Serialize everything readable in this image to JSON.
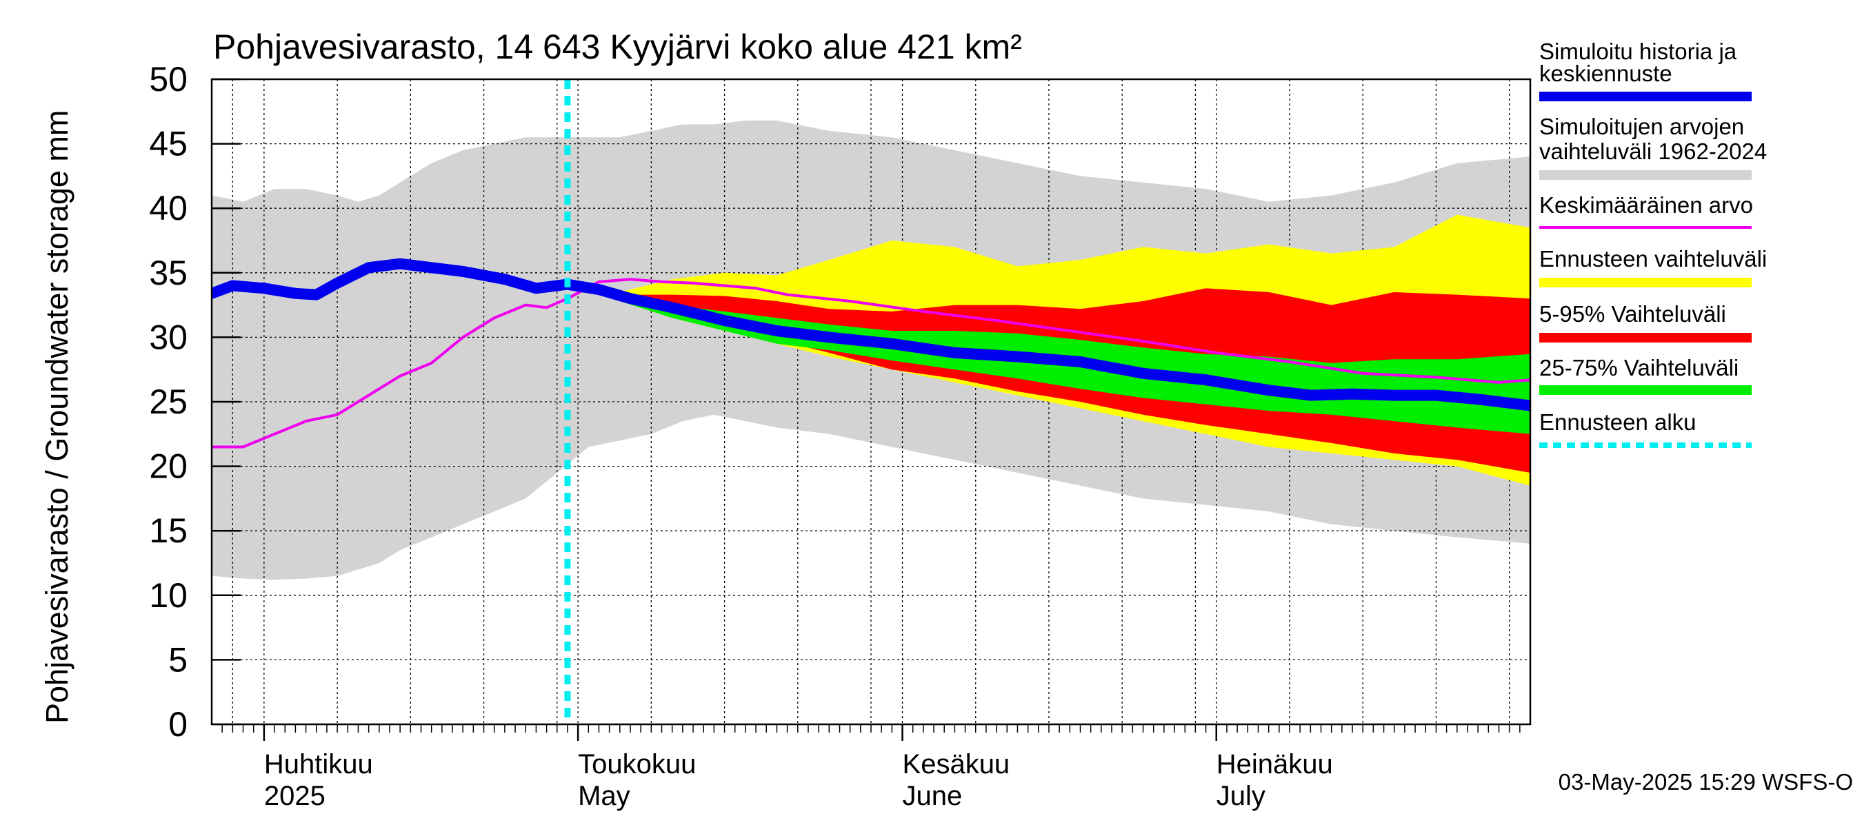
{
  "chart_data": {
    "type": "area",
    "title": "Pohjavesivarasto, 14 643 Kyyjärvi koko alue 421 km²",
    "ylabel": "Pohjavesivarasto / Groundwater storage   mm",
    "ylim": [
      0,
      50
    ],
    "yticks": [
      0,
      5,
      10,
      15,
      20,
      25,
      30,
      35,
      40,
      45,
      50
    ],
    "xlim": [
      "2025-03-27",
      "2025-07-31"
    ],
    "month_labels": [
      {
        "date": "2025-04-01",
        "line1": "Huhtikuu",
        "line2": "2025"
      },
      {
        "date": "2025-05-01",
        "line1": "Toukokuu",
        "line2": "May"
      },
      {
        "date": "2025-06-01",
        "line1": "Kesäkuu",
        "line2": "June"
      },
      {
        "date": "2025-07-01",
        "line1": "Heinäkuu",
        "line2": "July"
      }
    ],
    "forecast_start": "2025-04-30",
    "timestamp": "03-May-2025 15:29 WSFS-O",
    "colors": {
      "grey": "#d3d3d3",
      "yellow": "#ffff00",
      "red": "#ff0000",
      "green": "#00ee00",
      "blue": "#0000ee",
      "magenta": "#ee00ee",
      "cyan": "#00eeee"
    },
    "legend": [
      {
        "key": "sim",
        "line1": "Simuloitu historia ja",
        "line2": "keskiennuste",
        "color": "#0000ee",
        "style": "thick"
      },
      {
        "key": "range",
        "line1": "Simuloitujen arvojen",
        "line2": "vaihteluväli 1962-2024",
        "color": "#d3d3d3",
        "style": "thick"
      },
      {
        "key": "mean",
        "line1": "Keskimääräinen arvo",
        "line2": "",
        "color": "#ee00ee",
        "style": "thin"
      },
      {
        "key": "ens",
        "line1": "Ennusteen vaihteluväli",
        "line2": "",
        "color": "#ffff00",
        "style": "thick"
      },
      {
        "key": "p5_95",
        "line1": "5-95% Vaihteluväli",
        "line2": "",
        "color": "#ff0000",
        "style": "thick"
      },
      {
        "key": "p25_75",
        "line1": "25-75% Vaihteluväli",
        "line2": "",
        "color": "#00ee00",
        "style": "thick"
      },
      {
        "key": "start",
        "line1": "Ennusteen alku",
        "line2": "",
        "color": "#00eeee",
        "style": "dashed"
      }
    ],
    "series": {
      "hist_range": {
        "x": [
          "2025-03-27",
          "2025-03-30",
          "2025-04-02",
          "2025-04-05",
          "2025-04-08",
          "2025-04-10",
          "2025-04-12",
          "2025-04-14",
          "2025-04-17",
          "2025-04-20",
          "2025-04-23",
          "2025-04-26",
          "2025-04-29",
          "2025-05-02",
          "2025-05-05",
          "2025-05-08",
          "2025-05-11",
          "2025-05-14",
          "2025-05-17",
          "2025-05-20",
          "2025-05-25",
          "2025-05-31",
          "2025-06-06",
          "2025-06-12",
          "2025-06-18",
          "2025-06-24",
          "2025-06-30",
          "2025-07-06",
          "2025-07-12",
          "2025-07-18",
          "2025-07-24",
          "2025-07-31"
        ],
        "upper": [
          41,
          40.5,
          41.5,
          41.5,
          41,
          40.5,
          41,
          42,
          43.5,
          44.5,
          45,
          45.5,
          45.5,
          45.5,
          45.5,
          46,
          46.5,
          46.5,
          46.8,
          46.8,
          46,
          45.5,
          44.5,
          43.5,
          42.5,
          42,
          41.5,
          40.5,
          41,
          42,
          43.5,
          44
        ],
        "lower": [
          11.5,
          11.3,
          11.2,
          11.3,
          11.5,
          12,
          12.5,
          13.5,
          14.5,
          15.5,
          16.5,
          17.5,
          19.5,
          21.5,
          22,
          22.5,
          23.5,
          24,
          23.5,
          23,
          22.5,
          21.5,
          20.5,
          19.5,
          18.5,
          17.5,
          17,
          16.5,
          15.5,
          15,
          14.5,
          14
        ]
      },
      "mean": {
        "x": [
          "2025-03-27",
          "2025-03-30",
          "2025-04-02",
          "2025-04-05",
          "2025-04-08",
          "2025-04-11",
          "2025-04-14",
          "2025-04-17",
          "2025-04-20",
          "2025-04-23",
          "2025-04-26",
          "2025-04-28",
          "2025-04-30",
          "2025-05-03",
          "2025-05-06",
          "2025-05-09",
          "2025-05-12",
          "2025-05-15",
          "2025-05-18",
          "2025-05-21",
          "2025-05-27",
          "2025-06-03",
          "2025-06-10",
          "2025-06-17",
          "2025-06-24",
          "2025-07-01",
          "2025-07-08",
          "2025-07-15",
          "2025-07-22",
          "2025-07-28",
          "2025-07-31"
        ],
        "values": [
          21.5,
          21.5,
          22.5,
          23.5,
          24,
          25.5,
          27,
          28,
          30,
          31.5,
          32.5,
          32.3,
          33,
          34.3,
          34.5,
          34.3,
          34.2,
          34,
          33.8,
          33.3,
          32.8,
          32,
          31.3,
          30.5,
          29.7,
          28.8,
          28.1,
          27.2,
          26.9,
          26.5,
          26.7
        ]
      },
      "sim": {
        "x": [
          "2025-03-27",
          "2025-03-29",
          "2025-04-01",
          "2025-04-04",
          "2025-04-06",
          "2025-04-08",
          "2025-04-11",
          "2025-04-14",
          "2025-04-17",
          "2025-04-20",
          "2025-04-24",
          "2025-04-27",
          "2025-04-30",
          "2025-05-03",
          "2025-05-06",
          "2025-05-10",
          "2025-05-15",
          "2025-05-20",
          "2025-05-25",
          "2025-05-31",
          "2025-06-06",
          "2025-06-12",
          "2025-06-18",
          "2025-06-24",
          "2025-06-30",
          "2025-07-06",
          "2025-07-10",
          "2025-07-14",
          "2025-07-18",
          "2025-07-22",
          "2025-07-26",
          "2025-07-31"
        ],
        "values": [
          33.4,
          34,
          33.8,
          33.4,
          33.3,
          34.2,
          35.4,
          35.7,
          35.4,
          35.1,
          34.5,
          33.8,
          34.1,
          33.7,
          33,
          32.3,
          31.3,
          30.5,
          30,
          29.5,
          28.8,
          28.5,
          28.1,
          27.2,
          26.7,
          25.9,
          25.5,
          25.6,
          25.5,
          25.5,
          25.2,
          24.7
        ]
      },
      "forecast": {
        "x": [
          "2025-05-01",
          "2025-05-05",
          "2025-05-10",
          "2025-05-15",
          "2025-05-20",
          "2025-05-25",
          "2025-05-31",
          "2025-06-06",
          "2025-06-12",
          "2025-06-18",
          "2025-06-24",
          "2025-06-30",
          "2025-07-06",
          "2025-07-12",
          "2025-07-18",
          "2025-07-24",
          "2025-07-31"
        ],
        "ens_upper": [
          33.8,
          33.5,
          34.5,
          35,
          34.8,
          36,
          37.5,
          37,
          35.5,
          36,
          37,
          36.5,
          37.2,
          36.5,
          37,
          39.5,
          38.5
        ],
        "ens_lower": [
          33.8,
          32.8,
          31.5,
          30.5,
          29.5,
          28.5,
          27.5,
          26.5,
          25.5,
          24.5,
          23.5,
          22.5,
          21.5,
          21,
          20.5,
          20,
          18.5
        ],
        "p95": [
          33.8,
          33.3,
          33.3,
          33.2,
          32.8,
          32.2,
          32,
          32.5,
          32.5,
          32.2,
          32.8,
          33.8,
          33.5,
          32.5,
          33.5,
          33.3,
          33
        ],
        "p5": [
          33.8,
          32.8,
          31.8,
          30.8,
          29.8,
          28.8,
          27.5,
          26.8,
          25.8,
          25,
          24,
          23.2,
          22.5,
          21.8,
          21,
          20.5,
          19.5
        ],
        "p75": [
          33.8,
          33,
          32.5,
          32,
          31.5,
          31,
          30.5,
          30.5,
          30.3,
          29.8,
          29.2,
          28.7,
          28.5,
          28,
          28.3,
          28.3,
          28.7
        ],
        "p25": [
          33.8,
          32.8,
          31.5,
          30.5,
          29.5,
          29,
          28.2,
          27.5,
          26.8,
          26,
          25.3,
          24.8,
          24.3,
          24,
          23.5,
          23,
          22.5
        ]
      }
    }
  }
}
